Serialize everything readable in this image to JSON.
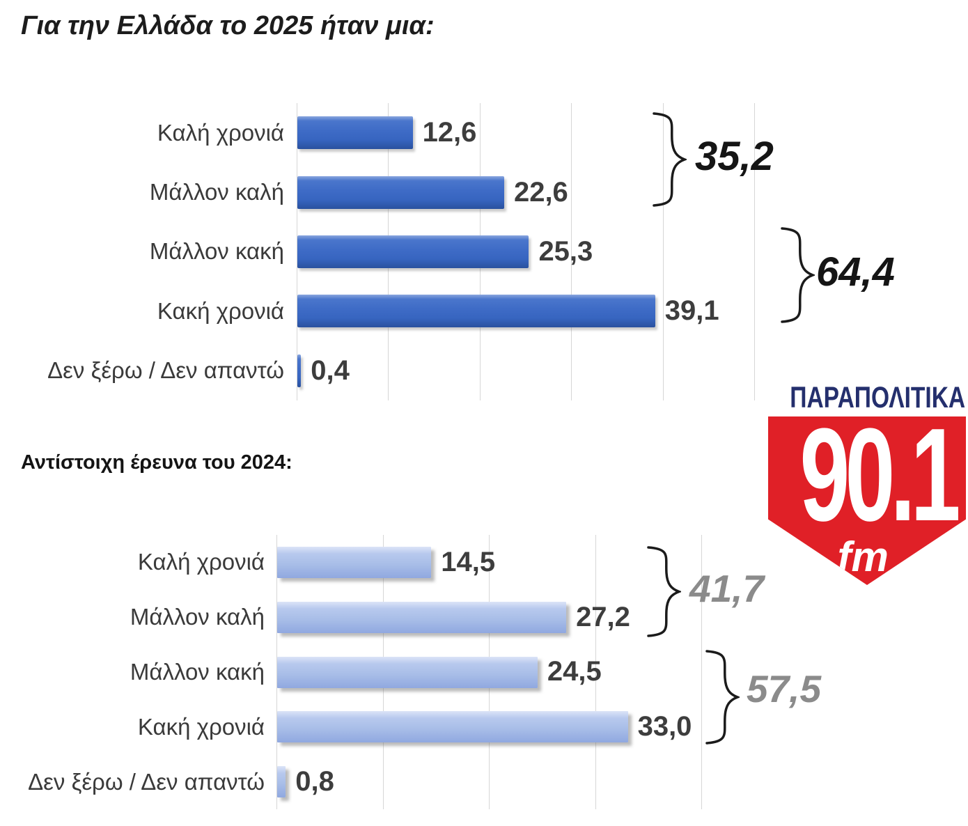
{
  "title_2025": "Για την Ελλάδα το 2025 ήταν μια:",
  "title_2024": "Αντίστοιχη έρευνα του 2024:",
  "logo": {
    "brand": "ΠΑΡΑΠΟΛΙΤΙΚΑ",
    "frequency": "90.1",
    "fm": "fm",
    "navy": "#242f6d",
    "red": "#e02027"
  },
  "chart_data": [
    {
      "type": "bar",
      "orientation": "horizontal",
      "title": "Για την Ελλάδα το 2025 ήταν μια:",
      "categories": [
        "Καλή χρονιά",
        "Μάλλον καλή",
        "Μάλλον κακή",
        "Κακή χρονιά",
        "Δεν ξέρω / Δεν απαντώ"
      ],
      "values": [
        12.6,
        22.6,
        25.3,
        39.1,
        0.4
      ],
      "value_labels": [
        "12,6",
        "22,6",
        "25,3",
        "39,1",
        "0,4"
      ],
      "xlim": [
        0,
        50
      ],
      "grid_values": [
        0,
        10,
        20,
        30,
        40,
        50
      ],
      "grid": true,
      "legend": "none",
      "bar_color": "#3e6bc6",
      "label_color": "#3d3d3d",
      "aggregates": [
        {
          "label": "35,2",
          "rows": [
            0,
            1
          ],
          "color": "#151515"
        },
        {
          "label": "64,4",
          "rows": [
            2,
            3
          ],
          "color": "#151515"
        }
      ]
    },
    {
      "type": "bar",
      "orientation": "horizontal",
      "title": "Αντίστοιχη έρευνα του 2024:",
      "categories": [
        "Καλή χρονιά",
        "Μάλλον καλή",
        "Μάλλον κακή",
        "Κακή χρονιά",
        "Δεν ξέρω / Δεν απαντώ"
      ],
      "values": [
        14.5,
        27.2,
        24.5,
        33.0,
        0.8
      ],
      "value_labels": [
        "14,5",
        "27,2",
        "24,5",
        "33,0",
        "0,8"
      ],
      "xlim": [
        0,
        50
      ],
      "grid_values": [
        0,
        10,
        20,
        30,
        40
      ],
      "grid": true,
      "legend": "none",
      "bar_color": "#a9bee8",
      "label_color": "#3d3d3d",
      "aggregates": [
        {
          "label": "41,7",
          "rows": [
            0,
            1
          ],
          "color": "#8b8b8b"
        },
        {
          "label": "57,5",
          "rows": [
            2,
            3
          ],
          "color": "#8b8b8b"
        }
      ]
    }
  ]
}
